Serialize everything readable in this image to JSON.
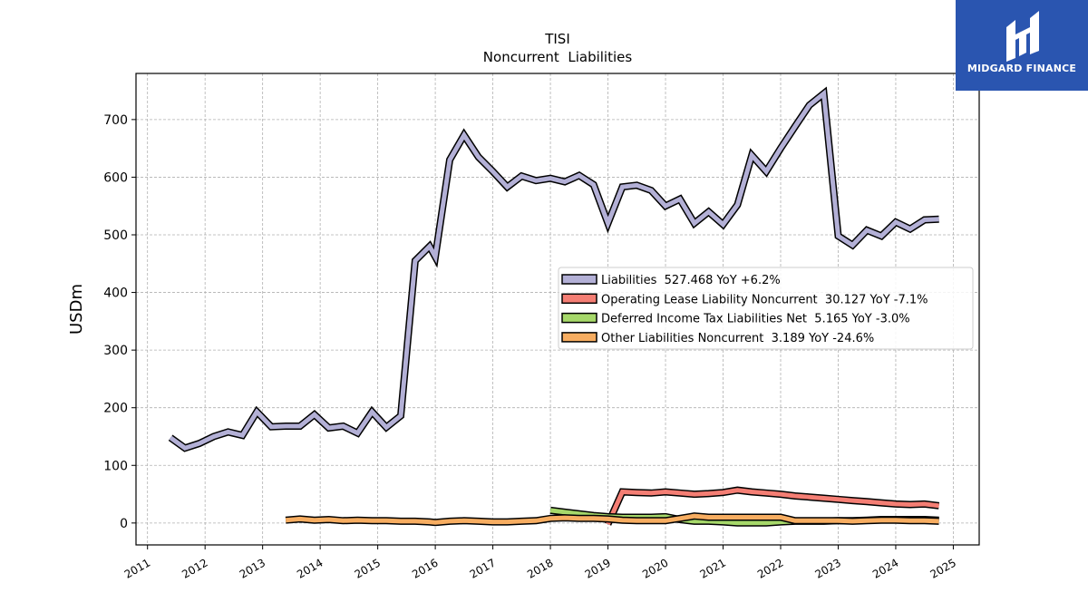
{
  "brand": {
    "name": "MIDGARD FINANCE",
    "box_color": "#2a55b0"
  },
  "chart_data": {
    "type": "line",
    "title": "TISI",
    "subtitle": "Noncurrent  Liabilities",
    "ylabel": "USDm",
    "xlabel": "",
    "xlim": [
      2010.8,
      2025.45
    ],
    "ylim": [
      -38,
      780
    ],
    "yticks": [
      0,
      100,
      200,
      300,
      400,
      500,
      600,
      700
    ],
    "xticks": [
      "2011",
      "2012",
      "2013",
      "2014",
      "2015",
      "2016",
      "2017",
      "2018",
      "2019",
      "2020",
      "2021",
      "2022",
      "2023",
      "2024",
      "2025"
    ],
    "grid": true,
    "legend_position": "center-right",
    "series": [
      {
        "name": "Liabilities  527.468 YoY +6.2%",
        "color": "#b3b0d6",
        "x": [
          2011.4,
          2011.65,
          2011.9,
          2012.15,
          2012.4,
          2012.65,
          2012.9,
          2013.15,
          2013.4,
          2013.65,
          2013.9,
          2014.15,
          2014.4,
          2014.65,
          2014.9,
          2015.15,
          2015.4,
          2015.65,
          2015.9,
          2016.0,
          2016.25,
          2016.5,
          2016.75,
          2017.0,
          2017.25,
          2017.5,
          2017.75,
          2018.0,
          2018.25,
          2018.5,
          2018.75,
          2019.0,
          2019.25,
          2019.5,
          2019.75,
          2020.0,
          2020.25,
          2020.5,
          2020.75,
          2021.0,
          2021.25,
          2021.5,
          2021.75,
          2022.0,
          2022.25,
          2022.5,
          2022.75,
          2023.0,
          2023.25,
          2023.5,
          2023.75,
          2024.0,
          2024.25,
          2024.5,
          2024.75
        ],
        "values": [
          148,
          130,
          138,
          150,
          158,
          152,
          193,
          167,
          168,
          168,
          188,
          165,
          168,
          156,
          193,
          166,
          186,
          455,
          480,
          462,
          630,
          673,
          635,
          610,
          583,
          602,
          594,
          598,
          592,
          603,
          587,
          520,
          583,
          586,
          577,
          550,
          562,
          520,
          540,
          518,
          552,
          638,
          610,
          650,
          688,
          725,
          745,
          498,
          482,
          508,
          498,
          522,
          510,
          526,
          527
        ]
      },
      {
        "name": "Operating Lease Liability Noncurrent  30.127 YoY -7.1%",
        "color": "#f47e74",
        "x": [
          2019.0,
          2019.25,
          2019.5,
          2019.75,
          2020.0,
          2020.25,
          2020.5,
          2020.75,
          2021.0,
          2021.25,
          2021.5,
          2021.75,
          2022.0,
          2022.25,
          2022.5,
          2022.75,
          2023.0,
          2023.25,
          2023.5,
          2023.75,
          2024.0,
          2024.25,
          2024.5,
          2024.75
        ],
        "values": [
          -2,
          54,
          53,
          52,
          54,
          52,
          50,
          51,
          53,
          57,
          54,
          52,
          50,
          47,
          45,
          43,
          41,
          39,
          37,
          35,
          33,
          32,
          33,
          30
        ]
      },
      {
        "name": "Deferred Income Tax Liabilities Net  5.165 YoY -3.0%",
        "color": "#a6d86a",
        "x": [
          2018.0,
          2018.25,
          2018.5,
          2018.75,
          2019.0,
          2019.25,
          2019.5,
          2019.75,
          2020.0,
          2020.25,
          2020.5,
          2020.75,
          2021.0,
          2021.25,
          2021.5,
          2021.75,
          2022.0,
          2022.25,
          2022.5,
          2022.75,
          2023.0,
          2023.25,
          2023.5,
          2023.75,
          2024.0,
          2024.25,
          2024.5,
          2024.75
        ],
        "values": [
          22,
          19,
          16,
          13,
          11,
          10,
          10,
          10,
          11,
          6,
          3,
          3,
          2,
          0,
          0,
          0,
          2,
          3,
          3,
          3,
          4,
          4,
          5,
          6,
          6,
          6,
          6,
          5
        ]
      },
      {
        "name": "Other Liabilities Noncurrent  3.189 YoY -24.6%",
        "color": "#f7ad61",
        "x": [
          2013.4,
          2013.65,
          2013.9,
          2014.15,
          2014.4,
          2014.65,
          2014.9,
          2015.15,
          2015.4,
          2015.65,
          2015.9,
          2016.0,
          2016.25,
          2016.5,
          2016.75,
          2017.0,
          2017.25,
          2017.5,
          2017.75,
          2018.0,
          2018.25,
          2018.5,
          2018.75,
          2019.0,
          2019.25,
          2019.5,
          2019.75,
          2020.0,
          2020.25,
          2020.5,
          2020.75,
          2021.0,
          2021.25,
          2021.5,
          2021.75,
          2022.0,
          2022.25,
          2022.5,
          2022.75,
          2023.0,
          2023.25,
          2023.5,
          2023.75,
          2024.0,
          2024.25,
          2024.5,
          2024.75
        ],
        "values": [
          5,
          7,
          5,
          6,
          4,
          5,
          4,
          4,
          3,
          3,
          2,
          1,
          3,
          4,
          3,
          2,
          2,
          3,
          4,
          8,
          9,
          8,
          8,
          7,
          5,
          4,
          4,
          4,
          8,
          12,
          10,
          10,
          10,
          10,
          10,
          10,
          4,
          4,
          4,
          4,
          3,
          4,
          5,
          5,
          4,
          4,
          3
        ]
      }
    ]
  }
}
